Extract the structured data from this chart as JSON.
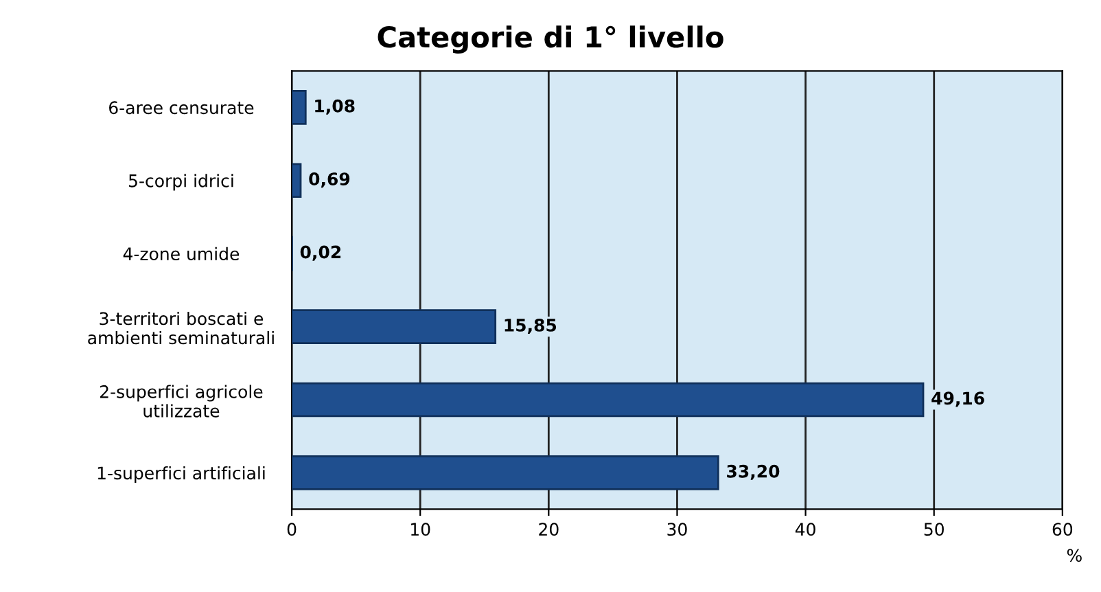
{
  "chart_data": {
    "type": "bar",
    "orientation": "horizontal",
    "title": "Categorie di 1° livello",
    "xlabel": "%",
    "categories": [
      "6-aree censurate",
      "5-corpi idrici",
      "4-zone umide",
      "3-territori boscati e\nambienti seminaturali",
      "2-superfici agricole\nutilizzate",
      "1-superfici artificiali"
    ],
    "values": [
      1.08,
      0.69,
      0.02,
      15.85,
      49.16,
      33.2
    ],
    "value_labels": [
      "1,08",
      "0,69",
      "0,02",
      "15,85",
      "49,16",
      "33,20"
    ],
    "color": "#1f4f8f",
    "xlim": [
      0,
      60
    ],
    "xticks": [
      0,
      10,
      20,
      30,
      40,
      50,
      60
    ],
    "grid": "x"
  }
}
